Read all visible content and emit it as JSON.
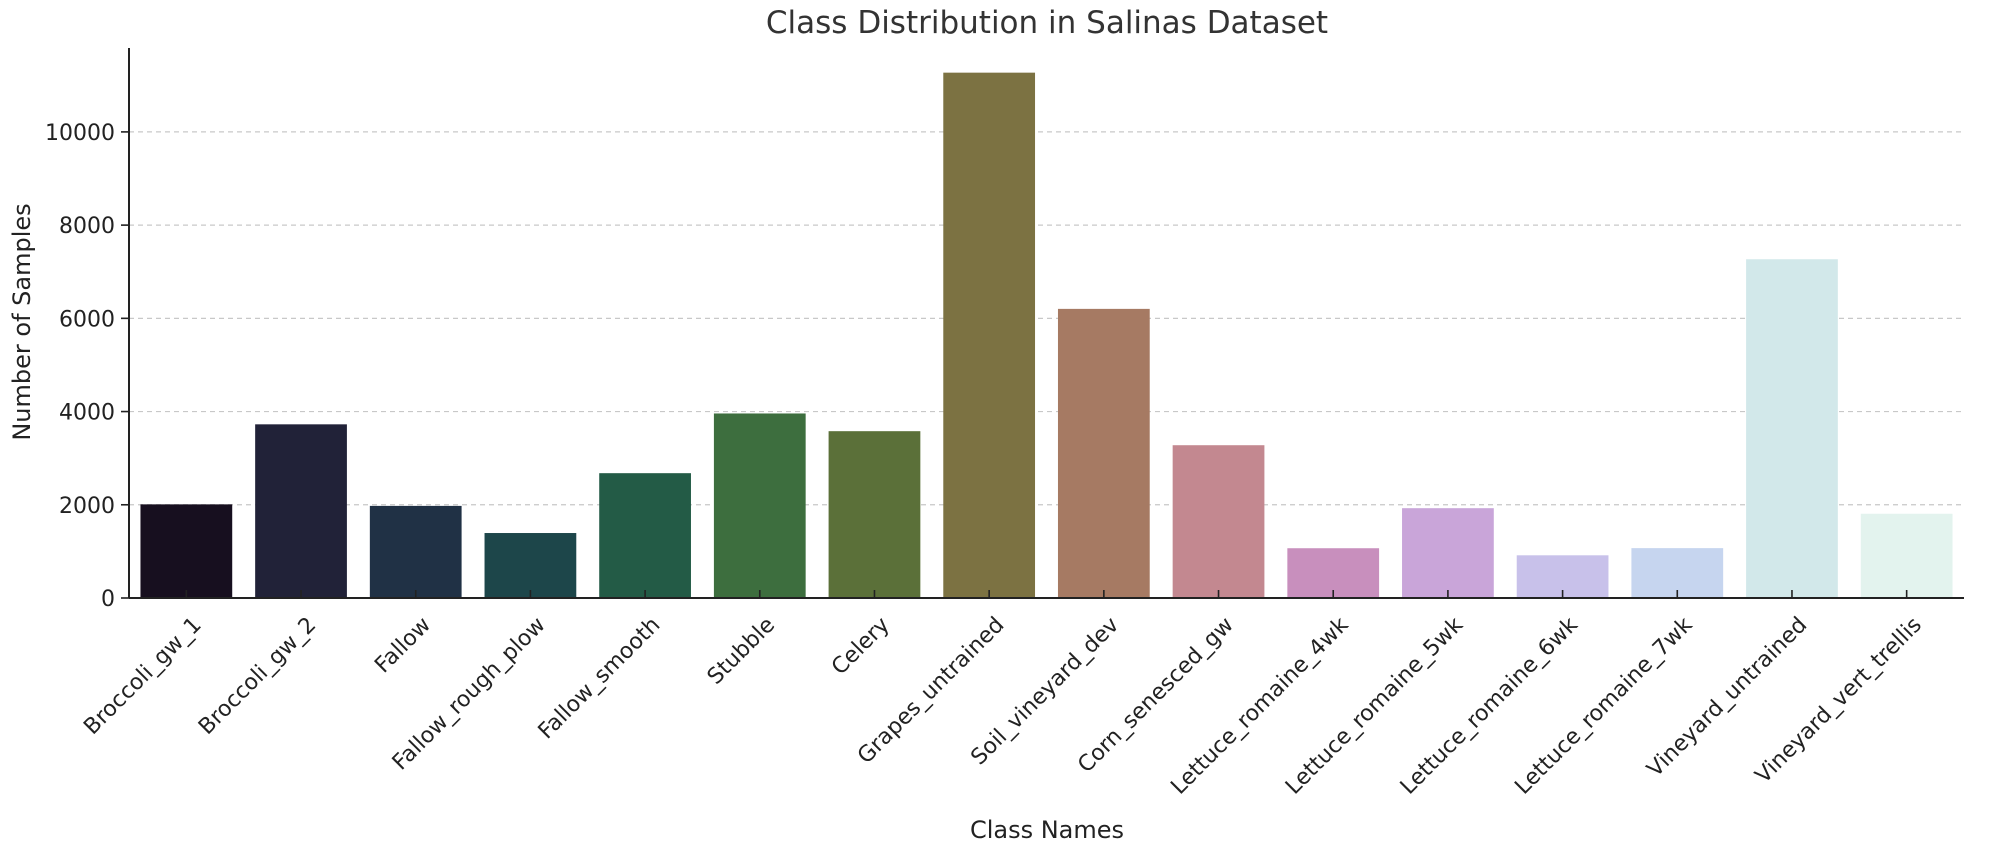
{
  "chart_data": {
    "type": "bar",
    "title": "Class Distribution in Salinas Dataset",
    "xlabel": "Class Names",
    "ylabel": "Number of Samples",
    "ylim": [
      0,
      11800
    ],
    "yticks": [
      0,
      2000,
      4000,
      6000,
      8000,
      10000
    ],
    "grid": "horizontal dashed",
    "legend": "none",
    "categories": [
      "Broccoli_gw_1",
      "Broccoli_gw_2",
      "Fallow",
      "Fallow_rough_plow",
      "Fallow_smooth",
      "Stubble",
      "Celery",
      "Grapes_untrained",
      "Soil_vineyard_dev",
      "Corn_senesced_gw",
      "Lettuce_romaine_4wk",
      "Lettuce_romaine_5wk",
      "Lettuce_romaine_6wk",
      "Lettuce_romaine_7wk",
      "Vineyard_untrained",
      "Vineyard_vert_trellis"
    ],
    "values": [
      2009,
      3726,
      1976,
      1394,
      2678,
      3959,
      3579,
      11271,
      6203,
      3278,
      1068,
      1927,
      916,
      1070,
      7268,
      1807
    ],
    "colors": [
      "#170f1f",
      "#212238",
      "#203145",
      "#1d464a",
      "#235b46",
      "#3d6e3e",
      "#5b7039",
      "#7c7242",
      "#a67a63",
      "#c38890",
      "#c88fbd",
      "#c9a5d9",
      "#c8c1ea",
      "#c6d5ef",
      "#d2e8ea",
      "#e3f3ee"
    ]
  }
}
